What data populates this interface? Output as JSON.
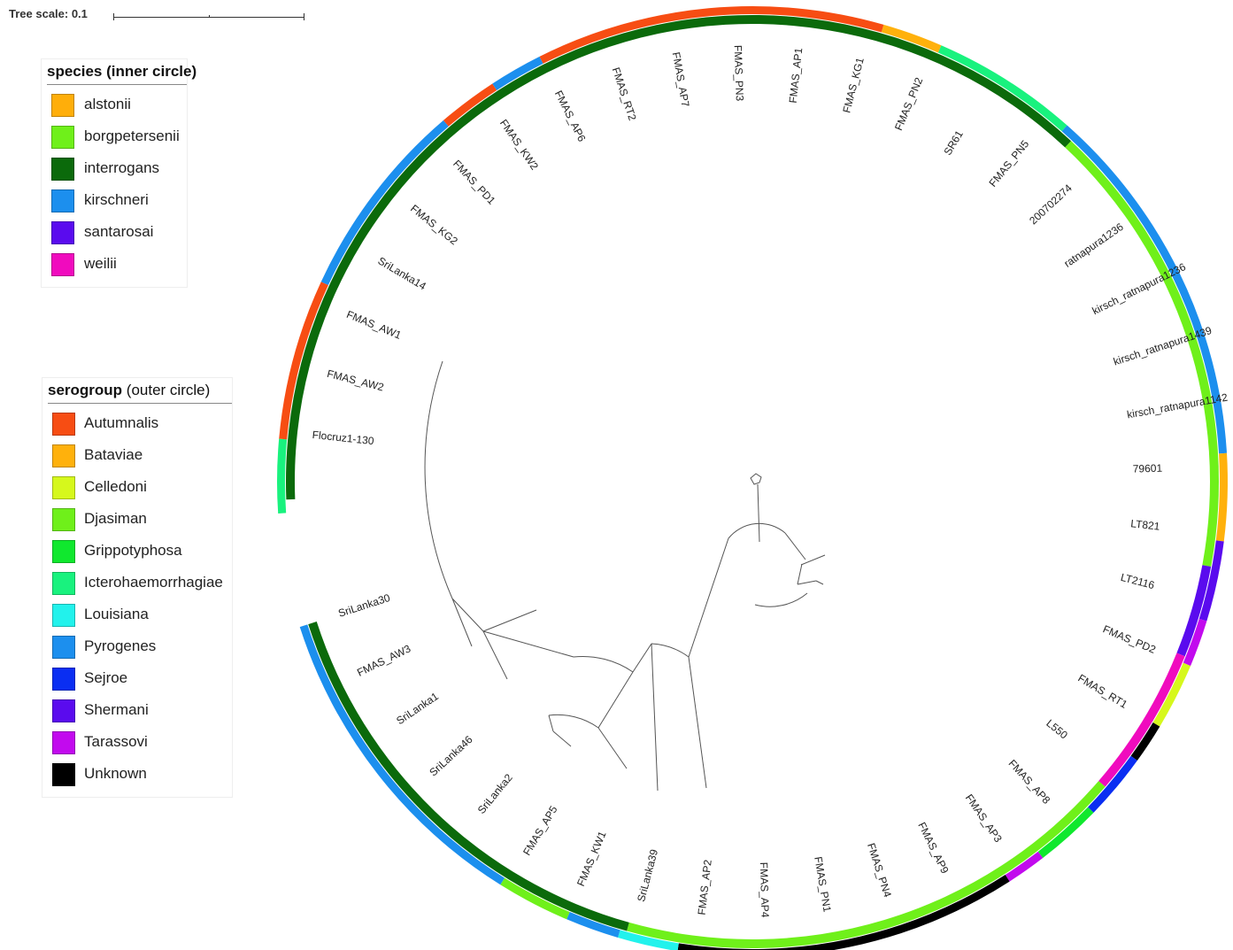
{
  "scale": {
    "label": "Tree scale: 0.1"
  },
  "legend_species": {
    "title": "species (inner circle)",
    "items": [
      {
        "label": "alstonii",
        "color": "#FFAE0A"
      },
      {
        "label": "borgpetersenii",
        "color": "#6FF01A"
      },
      {
        "label": "interrogans",
        "color": "#0B6A0B"
      },
      {
        "label": "kirschneri",
        "color": "#1C8FEE"
      },
      {
        "label": "santarosai",
        "color": "#5A0BEE"
      },
      {
        "label": "weilii",
        "color": "#F00BBE"
      }
    ]
  },
  "legend_serogroup": {
    "title_main": "serogroup",
    "title_note": "(outer circle)",
    "items": [
      {
        "label": "Autumnalis",
        "color": "#F74D13"
      },
      {
        "label": "Bataviae",
        "color": "#FFB10C"
      },
      {
        "label": "Celledoni",
        "color": "#D6F81C"
      },
      {
        "label": "Djasiman",
        "color": "#6FF01A"
      },
      {
        "label": "Grippotyphosa",
        "color": "#10E82E"
      },
      {
        "label": "Icterohaemorrhagiae",
        "color": "#19F27E"
      },
      {
        "label": "Louisiana",
        "color": "#22F2EC"
      },
      {
        "label": "Pyrogenes",
        "color": "#1C8FEE"
      },
      {
        "label": "Sejroe",
        "color": "#0A2EF2"
      },
      {
        "label": "Shermani",
        "color": "#5A0BEE"
      },
      {
        "label": "Tarassovi",
        "color": "#C20AEE"
      },
      {
        "label": "Unknown",
        "color": "#000000"
      }
    ]
  },
  "tree": {
    "leaves": [
      "Flocruz1-130",
      "FMAS_AW2",
      "FMAS_AW1",
      "SriLanka14",
      "FMAS_KG2",
      "FMAS_PD1",
      "FMAS_KW2",
      "FMAS_AP6",
      "FMAS_RT2",
      "FMAS_AP7",
      "FMAS_PN3",
      "FMAS_AP1",
      "FMAS_KG1",
      "FMAS_PN2",
      "SR61",
      "FMAS_PN5",
      "200702274",
      "ratnapura1236",
      "kirsch_ratnapura1236",
      "kirsch_ratnapura1439",
      "kirsch_ratnapura1142",
      "79601",
      "LT821",
      "LT2116",
      "FMAS_PD2",
      "FMAS_RT1",
      "L550",
      "FMAS_AP8",
      "FMAS_AP3",
      "FMAS_AP9",
      "FMAS_PN4",
      "FMAS_PN1",
      "FMAS_AP4",
      "FMAS_AP2",
      "SriLanka39",
      "FMAS_KW1",
      "FMAS_AP5",
      "SriLanka2",
      "SriLanka46",
      "SriLanka1",
      "FMAS_AW3",
      "SriLanka30"
    ],
    "species_ring": [
      {
        "species": "interrogans",
        "from": -1,
        "to": 15.5
      },
      {
        "species": "borgpetersenii",
        "from": 15.5,
        "to": 22.5
      },
      {
        "species": "santarosai",
        "from": 22.5,
        "to": 23.9
      },
      {
        "species": "weilii",
        "from": 23.9,
        "to": 26.2
      },
      {
        "species": "borgpetersenii",
        "from": 26.2,
        "to": 34.1
      },
      {
        "species": "interrogans",
        "from": 34.1,
        "to": 41
      }
    ],
    "serogroup_ring": [
      {
        "serogroup": "Icterohaemorrhagiae",
        "from": -1.2,
        "to": -0.1
      },
      {
        "serogroup": "Autumnalis",
        "from": -0.1,
        "to": 2.3
      },
      {
        "serogroup": "Pyrogenes",
        "from": 2.3,
        "to": 5.3
      },
      {
        "serogroup": "Autumnalis",
        "from": 5.3,
        "to": 6.2
      },
      {
        "serogroup": "Pyrogenes",
        "from": 6.2,
        "to": 7
      },
      {
        "serogroup": "Autumnalis",
        "from": 7,
        "to": 12.2
      },
      {
        "serogroup": "Bataviae",
        "from": 12.2,
        "to": 13.1
      },
      {
        "serogroup": "Icterohaemorrhagiae",
        "from": 13.1,
        "to": 15.3
      },
      {
        "serogroup": "Pyrogenes",
        "from": 15.3,
        "to": 20.8
      },
      {
        "serogroup": "Bataviae",
        "from": 20.8,
        "to": 22.1
      },
      {
        "serogroup": "Shermani",
        "from": 22.1,
        "to": 23.3
      },
      {
        "serogroup": "Tarassovi",
        "from": 23.3,
        "to": 24
      },
      {
        "serogroup": "Celledoni",
        "from": 24,
        "to": 25
      },
      {
        "serogroup": "Unknown",
        "from": 25,
        "to": 25.6
      },
      {
        "serogroup": "Sejroe",
        "from": 25.6,
        "to": 26.6
      },
      {
        "serogroup": "Grippotyphosa",
        "from": 26.6,
        "to": 27.6
      },
      {
        "serogroup": "Tarassovi",
        "from": 27.6,
        "to": 28.2
      },
      {
        "serogroup": "Unknown",
        "from": 28.2,
        "to": 33.3
      },
      {
        "serogroup": "Louisiana",
        "from": 33.3,
        "to": 34.2
      },
      {
        "serogroup": "Pyrogenes",
        "from": 34.2,
        "to": 35
      },
      {
        "serogroup": "Djasiman",
        "from": 35,
        "to": 36.1
      },
      {
        "serogroup": "Pyrogenes",
        "from": 36.1,
        "to": 41
      }
    ]
  }
}
